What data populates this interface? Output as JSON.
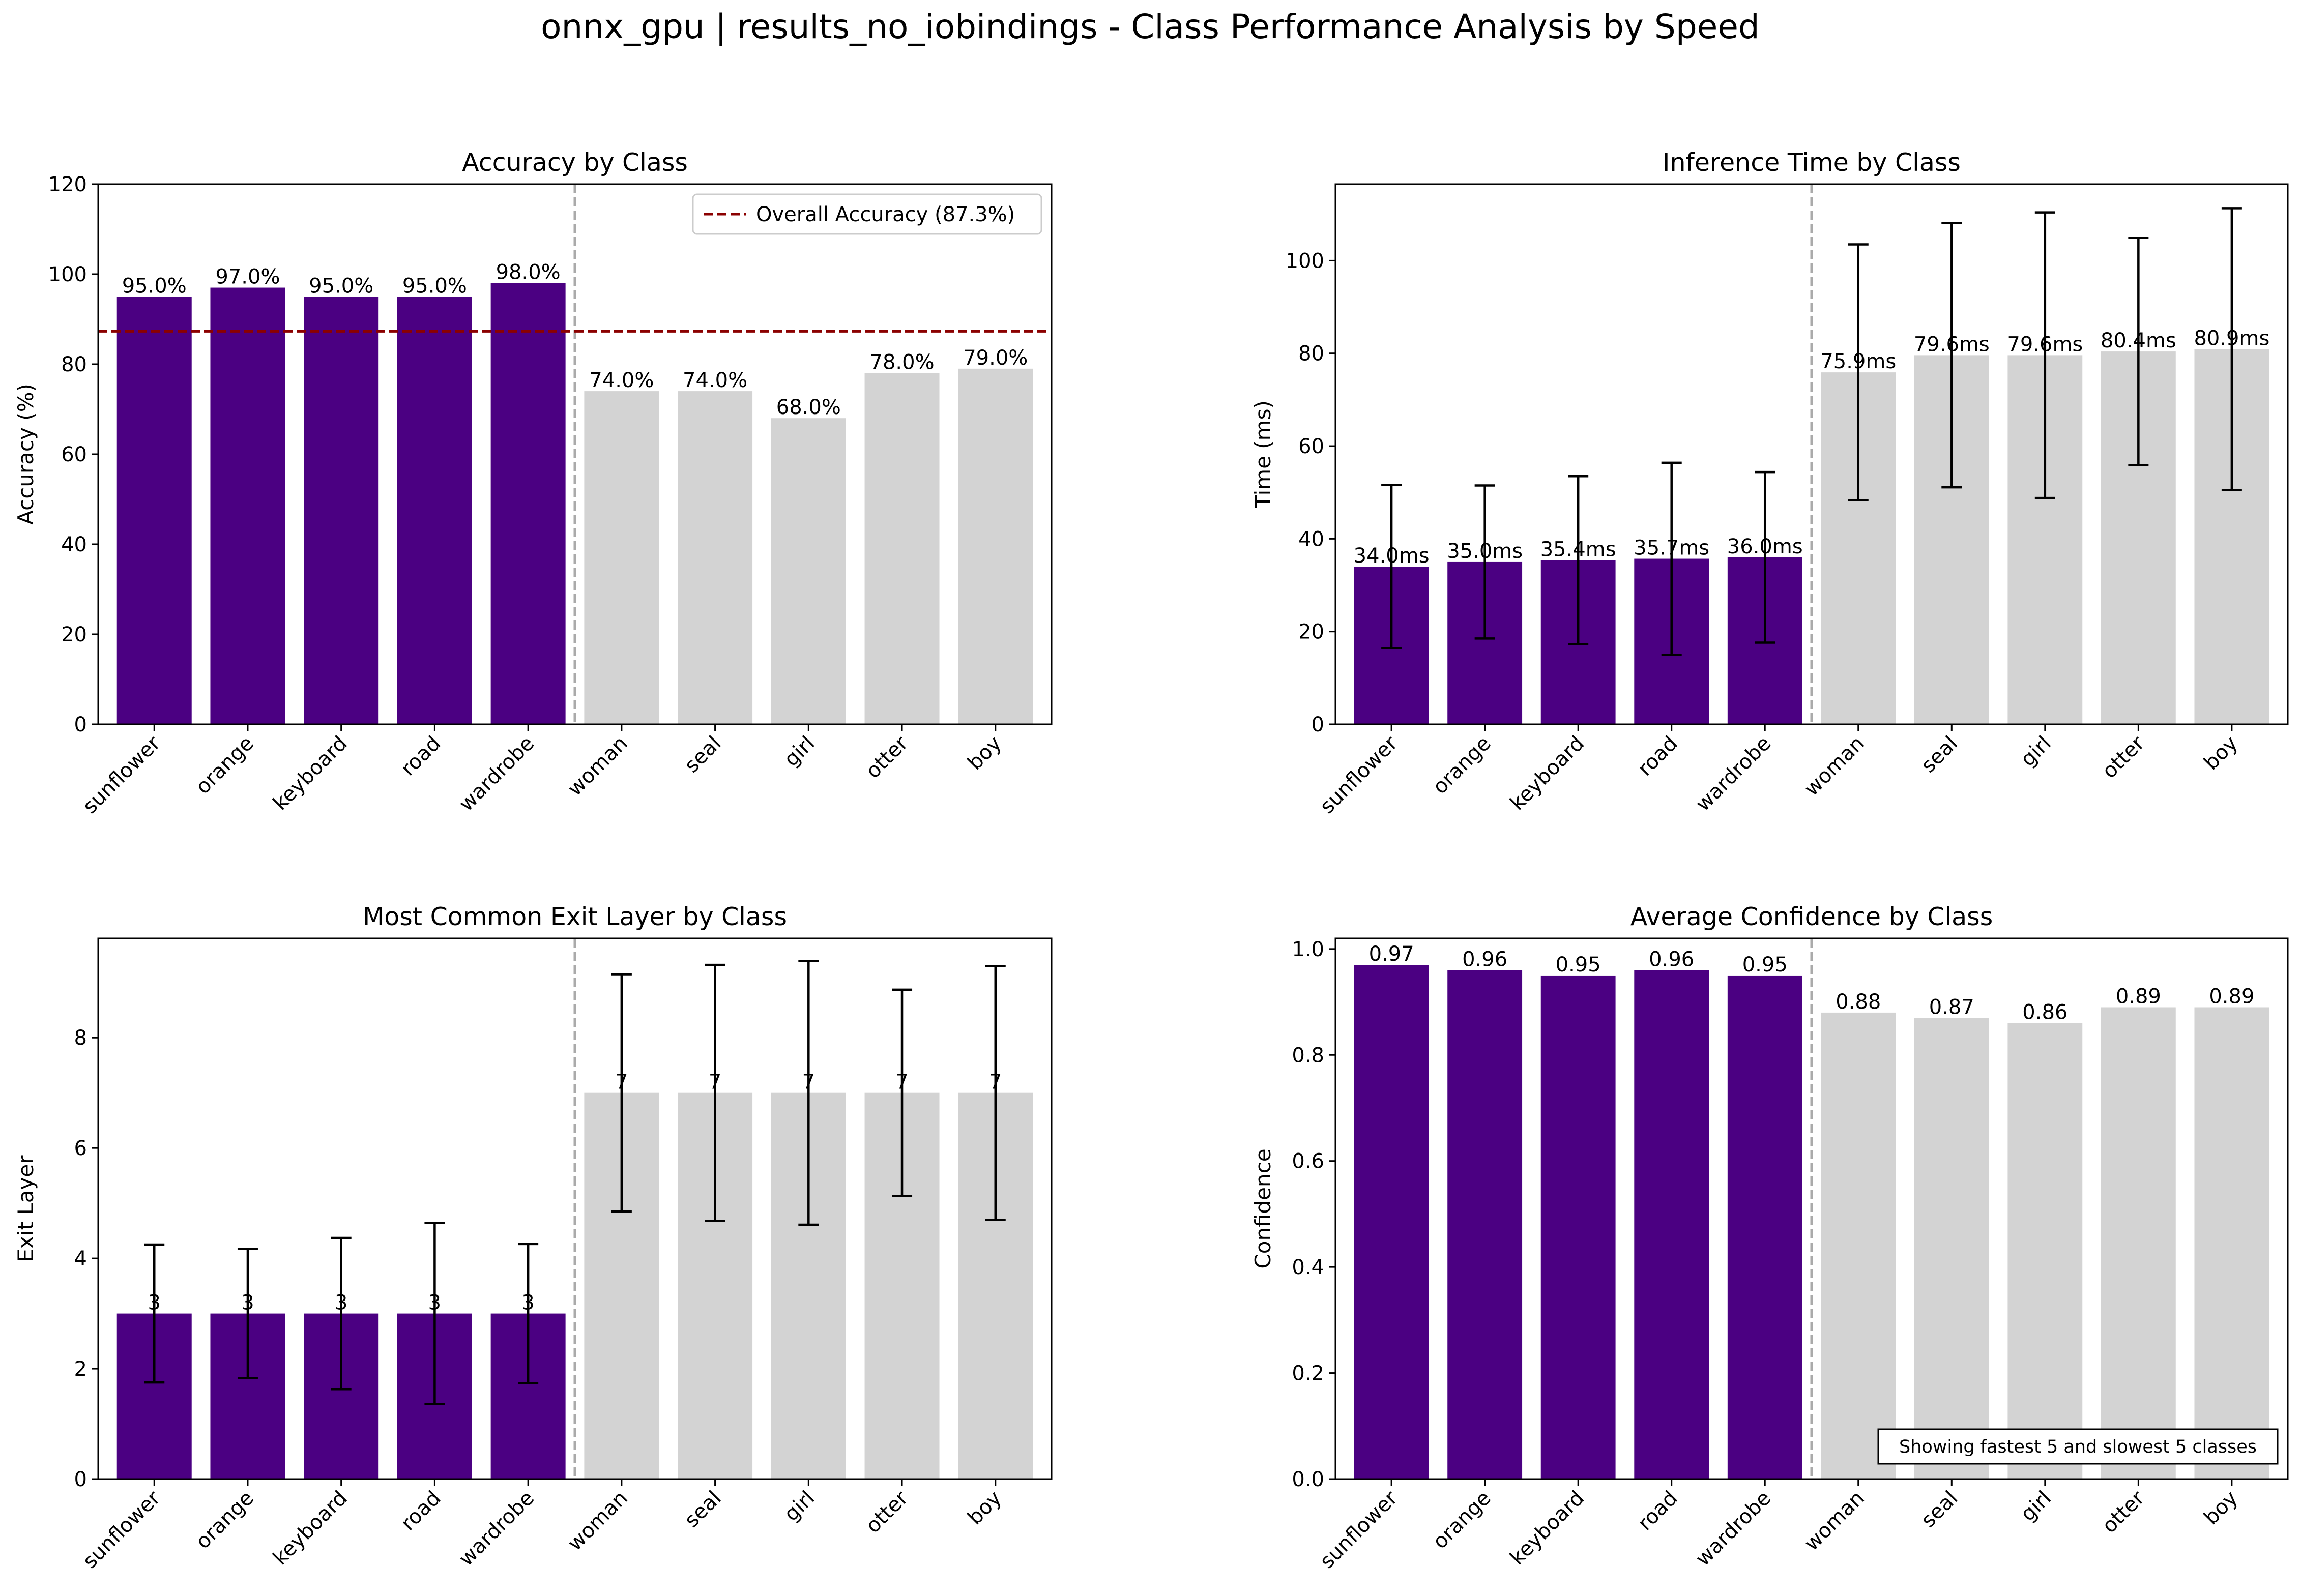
{
  "suptitle": "onnx_gpu | results_no_iobindings - Class Performance Analysis by Speed",
  "colors": {
    "fast": "#4b0082",
    "slow": "#d3d3d3",
    "overall_line": "#8b0000",
    "divider": "#aaaaaa",
    "error_bar": "#000000"
  },
  "chart_data": [
    {
      "type": "bar",
      "title": "Accuracy by Class",
      "xlabel": "",
      "ylabel": "Accuracy (%)",
      "categories": [
        "sunflower",
        "orange",
        "keyboard",
        "road",
        "wardrobe",
        "woman",
        "seal",
        "girl",
        "otter",
        "boy"
      ],
      "values": [
        95.0,
        97.0,
        95.0,
        95.0,
        98.0,
        74.0,
        74.0,
        68.0,
        78.0,
        79.0
      ],
      "value_labels": [
        "95.0%",
        "97.0%",
        "95.0%",
        "95.0%",
        "98.0%",
        "74.0%",
        "74.0%",
        "68.0%",
        "78.0%",
        "79.0%"
      ],
      "groups": [
        "fast",
        "fast",
        "fast",
        "fast",
        "fast",
        "slow",
        "slow",
        "slow",
        "slow",
        "slow"
      ],
      "ylim": [
        0,
        120
      ],
      "yticks": [
        0,
        20,
        40,
        60,
        80,
        100,
        120
      ],
      "reference_line": {
        "value": 87.3,
        "label": "Overall Accuracy (87.3%)"
      },
      "legend": "upper right",
      "grid": false
    },
    {
      "type": "bar",
      "title": "Inference Time by Class",
      "xlabel": "",
      "ylabel": "Time (ms)",
      "categories": [
        "sunflower",
        "orange",
        "keyboard",
        "road",
        "wardrobe",
        "woman",
        "seal",
        "girl",
        "otter",
        "boy"
      ],
      "values": [
        34.0,
        35.0,
        35.4,
        35.7,
        36.0,
        75.9,
        79.6,
        79.6,
        80.4,
        80.9
      ],
      "errors": [
        17.6,
        16.5,
        18.1,
        20.7,
        18.4,
        27.6,
        28.5,
        30.8,
        24.5,
        30.4
      ],
      "value_labels": [
        "34.0ms",
        "35.0ms",
        "35.4ms",
        "35.7ms",
        "36.0ms",
        "75.9ms",
        "79.6ms",
        "79.6ms",
        "80.4ms",
        "80.9ms"
      ],
      "groups": [
        "fast",
        "fast",
        "fast",
        "fast",
        "fast",
        "slow",
        "slow",
        "slow",
        "slow",
        "slow"
      ],
      "ylim": [
        0,
        116.5
      ],
      "yticks": [
        0,
        20,
        40,
        60,
        80,
        100
      ],
      "grid": false
    },
    {
      "type": "bar",
      "title": "Most Common Exit Layer by Class",
      "xlabel": "",
      "ylabel": "Exit Layer",
      "categories": [
        "sunflower",
        "orange",
        "keyboard",
        "road",
        "wardrobe",
        "woman",
        "seal",
        "girl",
        "otter",
        "boy"
      ],
      "values": [
        3,
        3,
        3,
        3,
        3,
        7,
        7,
        7,
        7,
        7
      ],
      "errors": [
        1.25,
        1.17,
        1.37,
        1.64,
        1.26,
        2.15,
        2.32,
        2.39,
        1.87,
        2.3
      ],
      "value_labels": [
        "3",
        "3",
        "3",
        "3",
        "3",
        "7",
        "7",
        "7",
        "7",
        "7"
      ],
      "groups": [
        "fast",
        "fast",
        "fast",
        "fast",
        "fast",
        "slow",
        "slow",
        "slow",
        "slow",
        "slow"
      ],
      "ylim": [
        0,
        9.8
      ],
      "yticks": [
        0,
        2,
        4,
        6,
        8
      ],
      "grid": false
    },
    {
      "type": "bar",
      "title": "Average Confidence by Class",
      "xlabel": "",
      "ylabel": "Confidence",
      "categories": [
        "sunflower",
        "orange",
        "keyboard",
        "road",
        "wardrobe",
        "woman",
        "seal",
        "girl",
        "otter",
        "boy"
      ],
      "values": [
        0.97,
        0.96,
        0.95,
        0.96,
        0.95,
        0.88,
        0.87,
        0.86,
        0.89,
        0.89
      ],
      "value_labels": [
        "0.97",
        "0.96",
        "0.95",
        "0.96",
        "0.95",
        "0.88",
        "0.87",
        "0.86",
        "0.89",
        "0.89"
      ],
      "groups": [
        "fast",
        "fast",
        "fast",
        "fast",
        "fast",
        "slow",
        "slow",
        "slow",
        "slow",
        "slow"
      ],
      "ylim": [
        0,
        1.02
      ],
      "yticks": [
        0.0,
        0.2,
        0.4,
        0.6,
        0.8,
        1.0
      ],
      "annotation": "Showing fastest 5 and slowest 5 classes",
      "grid": false
    }
  ]
}
